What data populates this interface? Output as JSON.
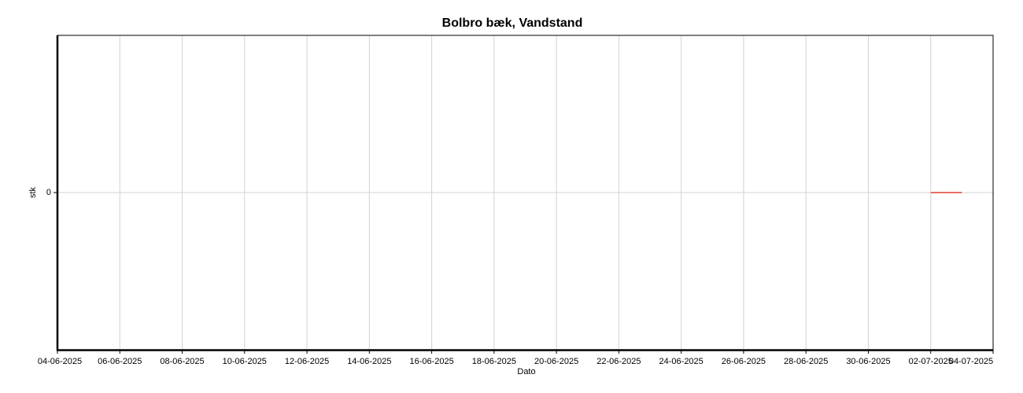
{
  "chart_data": {
    "type": "line",
    "title": "Bolbro bæk, Vandstand",
    "x_label": "Dato",
    "y_label": "stk",
    "x": [
      "02-07-2025",
      "03-07-2025"
    ],
    "values": [
      0,
      0
    ],
    "color": "#e03c31",
    "xlim": [
      "04-06-2025",
      "04-07-2025"
    ],
    "xticks": [
      "04-06-2025",
      "06-06-2025",
      "08-06-2025",
      "10-06-2025",
      "12-06-2025",
      "14-06-2025",
      "16-06-2025",
      "18-06-2025",
      "20-06-2025",
      "22-06-2025",
      "24-06-2025",
      "26-06-2025",
      "28-06-2025",
      "30-06-2025",
      "02-07-2025",
      "04-07-2025"
    ],
    "ylim": [
      -1,
      1
    ],
    "yticks": [
      0
    ],
    "grid": true
  }
}
